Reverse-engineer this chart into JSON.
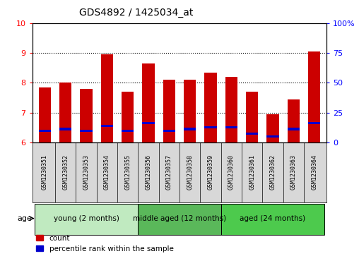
{
  "title": "GDS4892 / 1425034_at",
  "samples": [
    "GSM1230351",
    "GSM1230352",
    "GSM1230353",
    "GSM1230354",
    "GSM1230355",
    "GSM1230356",
    "GSM1230357",
    "GSM1230358",
    "GSM1230359",
    "GSM1230360",
    "GSM1230361",
    "GSM1230362",
    "GSM1230363",
    "GSM1230364"
  ],
  "count_values": [
    7.85,
    8.0,
    7.8,
    8.95,
    7.7,
    8.65,
    8.1,
    8.1,
    8.35,
    8.2,
    7.7,
    6.95,
    7.45,
    9.05
  ],
  "percentile_values": [
    6.4,
    6.45,
    6.4,
    6.55,
    6.4,
    6.65,
    6.4,
    6.45,
    6.5,
    6.5,
    6.3,
    6.2,
    6.45,
    6.65
  ],
  "ylim_left": [
    6,
    10
  ],
  "ylim_right": [
    0,
    100
  ],
  "yticks_left": [
    6,
    7,
    8,
    9,
    10
  ],
  "yticks_right": [
    0,
    25,
    50,
    75,
    100
  ],
  "ytick_labels_right": [
    "0",
    "25",
    "50",
    "75",
    "100%"
  ],
  "bar_color": "#CC0000",
  "percentile_color": "#0000CC",
  "bar_width": 0.6,
  "groups": [
    {
      "label": "young (2 months)",
      "start": 0,
      "end": 4,
      "color": "#c0eac0"
    },
    {
      "label": "middle aged (12 months)",
      "start": 5,
      "end": 8,
      "color": "#5ab85a"
    },
    {
      "label": "aged (24 months)",
      "start": 9,
      "end": 13,
      "color": "#4dca4d"
    }
  ],
  "group_label": "age",
  "legend_count_label": "count",
  "legend_percentile_label": "percentile rank within the sample",
  "grid_color": "black",
  "background_color": "white",
  "plot_bg_color": "white",
  "base_value": 6.0,
  "gray_box_color": "#d8d8d8"
}
